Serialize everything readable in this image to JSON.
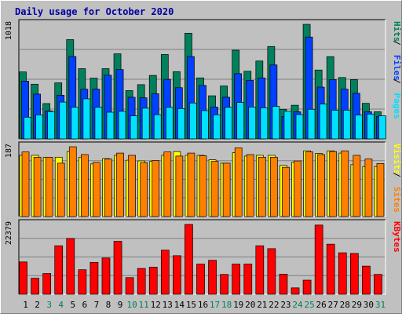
{
  "chart_data": [
    {
      "type": "bar",
      "title": "Daily usage for October 2020",
      "ylabel_max": "1018",
      "ylim": [
        0,
        1018
      ],
      "grid": true,
      "categories": [
        "1",
        "2",
        "3",
        "4",
        "5",
        "6",
        "7",
        "8",
        "9",
        "10",
        "11",
        "12",
        "13",
        "14",
        "15",
        "16",
        "17",
        "18",
        "19",
        "20",
        "21",
        "22",
        "23",
        "24",
        "25",
        "26",
        "27",
        "28",
        "29",
        "30",
        "31"
      ],
      "weekend_days": [
        "3",
        "4",
        "10",
        "11",
        "17",
        "18",
        "24",
        "25",
        "31"
      ],
      "legend": [
        {
          "label": "Hits",
          "color": "#00805c"
        },
        {
          "label": "Files",
          "color": "#0040ff"
        },
        {
          "label": "Pages",
          "color": "#00e0ff"
        }
      ],
      "separator": " / ",
      "series": [
        {
          "name": "Hits",
          "color": "#00805c",
          "values": [
            595,
            486,
            314,
            498,
            882,
            624,
            540,
            624,
            756,
            429,
            482,
            564,
            750,
            597,
            939,
            542,
            383,
            470,
            788,
            601,
            692,
            821,
            263,
            299,
            1018,
            612,
            731,
            545,
            527,
            316,
            241
          ]
        },
        {
          "name": "Files",
          "color": "#0040ff",
          "values": [
            513,
            398,
            249,
            388,
            732,
            442,
            442,
            566,
            616,
            370,
            365,
            401,
            529,
            455,
            732,
            475,
            283,
            370,
            580,
            520,
            542,
            657,
            200,
            241,
            905,
            460,
            527,
            442,
            405,
            241,
            200
          ]
        },
        {
          "name": "Pages",
          "color": "#00e0ff",
          "values": [
            193,
            213,
            243,
            327,
            281,
            356,
            281,
            237,
            245,
            205,
            273,
            215,
            280,
            269,
            319,
            251,
            214,
            281,
            324,
            283,
            276,
            289,
            245,
            216,
            263,
            310,
            255,
            255,
            212,
            220,
            205
          ]
        }
      ]
    },
    {
      "type": "bar",
      "ylabel_max": "187",
      "ylim": [
        0,
        187
      ],
      "grid": true,
      "categories": [
        "1",
        "2",
        "3",
        "4",
        "5",
        "6",
        "7",
        "8",
        "9",
        "10",
        "11",
        "12",
        "13",
        "14",
        "15",
        "16",
        "17",
        "18",
        "19",
        "20",
        "21",
        "22",
        "23",
        "24",
        "25",
        "26",
        "27",
        "28",
        "29",
        "30",
        "31"
      ],
      "legend": [
        {
          "label": "Visits",
          "color": "#ffff00"
        },
        {
          "label": "Sites",
          "color": "#ff8000"
        }
      ],
      "separator": " / ",
      "series": [
        {
          "name": "Visits",
          "color": "#ffff00",
          "values": [
            164,
            164,
            159,
            159,
            174,
            159,
            141,
            155,
            164,
            151,
            149,
            148,
            164,
            174,
            164,
            164,
            152,
            143,
            171,
            162,
            164,
            164,
            137,
            145,
            176,
            169,
            176,
            170,
            139,
            134,
            134
          ]
        },
        {
          "name": "Sites",
          "color": "#ff8000",
          "values": [
            173,
            159,
            159,
            143,
            187,
            166,
            145,
            154,
            170,
            164,
            144,
            150,
            173,
            162,
            170,
            163,
            148,
            143,
            184,
            166,
            159,
            159,
            132,
            149,
            173,
            166,
            174,
            176,
            164,
            154,
            142
          ]
        }
      ]
    },
    {
      "type": "bar",
      "ylabel_max": "22379",
      "ylim": [
        0,
        22379
      ],
      "grid": true,
      "categories": [
        "1",
        "2",
        "3",
        "4",
        "5",
        "6",
        "7",
        "8",
        "9",
        "10",
        "11",
        "12",
        "13",
        "14",
        "15",
        "16",
        "17",
        "18",
        "19",
        "20",
        "21",
        "22",
        "23",
        "24",
        "25",
        "26",
        "27",
        "28",
        "29",
        "30",
        "31"
      ],
      "legend": [
        {
          "label": "KBytes",
          "color": "#ff0000"
        }
      ],
      "separator": "",
      "series": [
        {
          "name": "KBytes",
          "color": "#ff0000",
          "values": [
            10356,
            5126,
            6650,
            15538,
            17862,
            7868,
            10228,
            11624,
            16963,
            5335,
            8271,
            8680,
            14126,
            12358,
            22379,
            9669,
            10886,
            6355,
            9669,
            9669,
            15538,
            14614,
            6445,
            2051,
            4520,
            22171,
            16051,
            13292,
            13079,
            9023,
            6355
          ]
        }
      ]
    }
  ]
}
